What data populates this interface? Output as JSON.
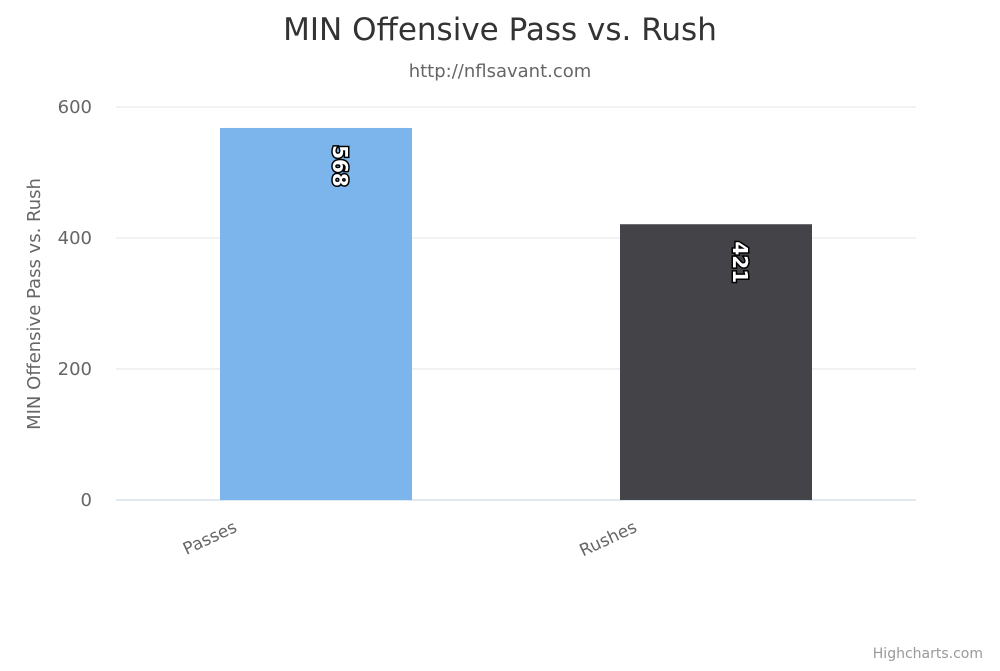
{
  "chart_data": {
    "type": "bar",
    "title": "MIN Offensive Pass vs. Rush",
    "subtitle": "http://nflsavant.com",
    "xlabel": "",
    "ylabel": "MIN Offensive Pass vs. Rush",
    "categories": [
      "Passes",
      "Rushes"
    ],
    "values": [
      568,
      421
    ],
    "data_labels": [
      "568",
      "421"
    ],
    "colors": [
      "#7cb5ec",
      "#434348"
    ],
    "ylim": [
      0,
      600
    ],
    "yticks": [
      0,
      200,
      400,
      600
    ],
    "grid": true,
    "legend": "none"
  },
  "credits": "Highcharts.com"
}
